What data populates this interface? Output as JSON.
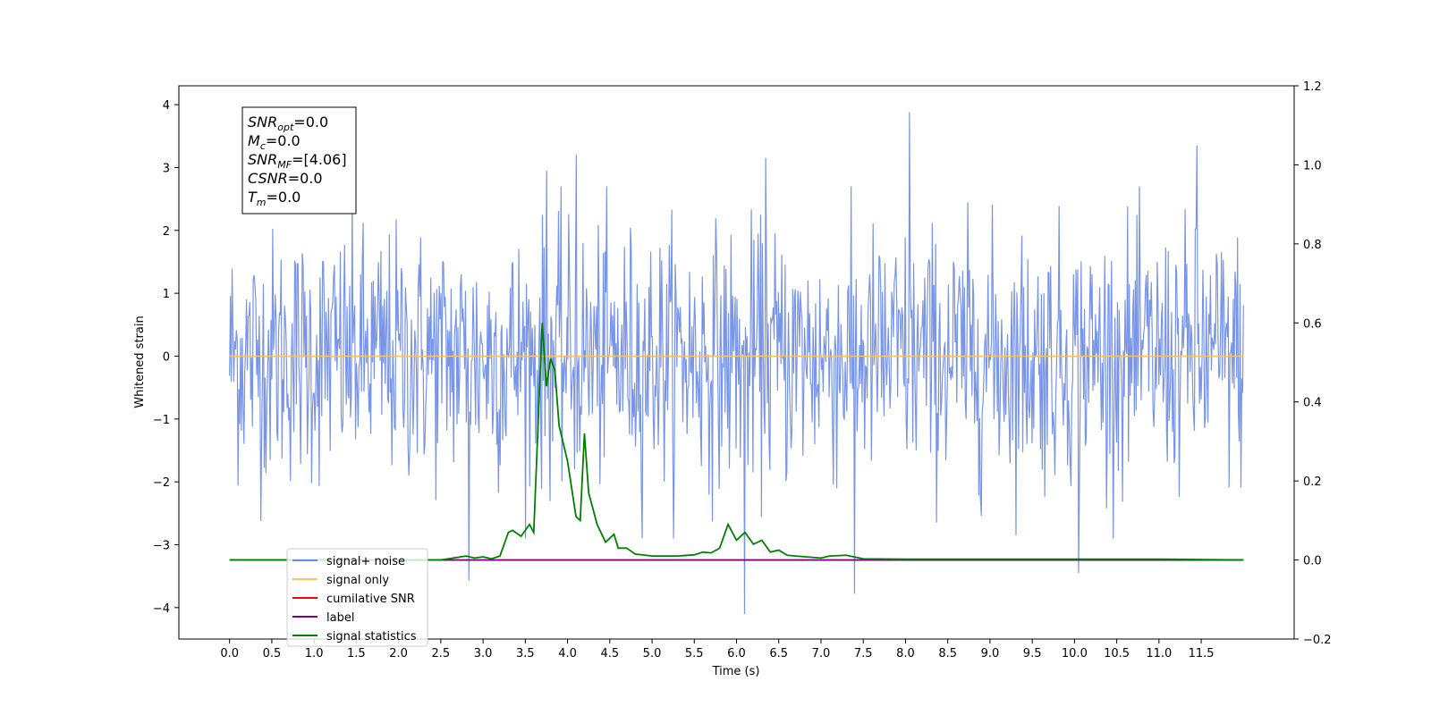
{
  "chart_data": {
    "type": "line",
    "xlabel": "Time (s)",
    "ylabel": "Whitened strain",
    "xlim": [
      -0.6,
      12.6
    ],
    "ylim": [
      -4.5,
      4.3
    ],
    "y2lim": [
      -0.2,
      1.2
    ],
    "x_ticks": [
      0.0,
      0.5,
      1.0,
      1.5,
      2.0,
      2.5,
      3.0,
      3.5,
      4.0,
      4.5,
      5.0,
      5.5,
      6.0,
      6.5,
      7.0,
      7.5,
      8.0,
      8.5,
      9.0,
      9.5,
      10.0,
      10.5,
      11.0,
      11.5
    ],
    "x_tick_labels": [
      "0.0",
      "0.5",
      "1.0",
      "1.5",
      "2.0",
      "2.5",
      "3.0",
      "3.5",
      "4.0",
      "4.5",
      "5.0",
      "5.5",
      "6.0",
      "6.5",
      "7.0",
      "7.5",
      "8.0",
      "8.5",
      "9.0",
      "9.5",
      "10.0",
      "10.5",
      "11.0",
      "11.5"
    ],
    "y_ticks": [
      4,
      3,
      2,
      1,
      0,
      -1,
      -2,
      -3,
      -4
    ],
    "y_tick_labels": [
      "4",
      "3",
      "2",
      "1",
      "0",
      "−1",
      "−2",
      "−3",
      "−4"
    ],
    "y2_ticks": [
      1.2,
      1.0,
      0.8,
      0.6,
      0.4,
      0.2,
      0.0,
      -0.2
    ],
    "y2_tick_labels": [
      "1.2",
      "1.0",
      "0.8",
      "0.6",
      "0.4",
      "0.2",
      "0.0",
      "−0.2"
    ],
    "grid": false,
    "legend_position": "bottom-left",
    "series": [
      {
        "name": "signal+ noise",
        "color": "#6a89e6",
        "axis": "left",
        "description_values": "dense noise, range about -4.1 to 3.9",
        "x_range": [
          0.0,
          12.0
        ],
        "sample_count": 1200,
        "peaks": [
          [
            8.05,
            3.88
          ],
          [
            11.45,
            3.35
          ],
          [
            6.1,
            -4.1
          ],
          [
            7.4,
            -3.78
          ],
          [
            2.83,
            -3.57
          ],
          [
            3.75,
            2.95
          ],
          [
            4.1,
            3.2
          ],
          [
            6.35,
            3.15
          ],
          [
            10.05,
            -3.45
          ]
        ]
      },
      {
        "name": "signal only",
        "color": "#ffbf5a",
        "axis": "left",
        "x": [
          0.0,
          12.0
        ],
        "values": [
          0.0,
          0.0
        ]
      },
      {
        "name": "cumilative SNR",
        "color": "#ff0000",
        "axis": "right",
        "x": [],
        "values": []
      },
      {
        "name": "label",
        "color": "#800080",
        "axis": "right",
        "x": [
          0.0,
          12.0
        ],
        "values": [
          0.0,
          0.0
        ]
      },
      {
        "name": "signal statistics",
        "color": "#008000",
        "axis": "right",
        "x": [
          0.0,
          2.5,
          2.8,
          2.9,
          3.0,
          3.1,
          3.2,
          3.3,
          3.35,
          3.45,
          3.55,
          3.6,
          3.7,
          3.75,
          3.8,
          3.85,
          3.9,
          4.0,
          4.1,
          4.15,
          4.2,
          4.25,
          4.35,
          4.45,
          4.55,
          4.6,
          4.7,
          4.8,
          5.0,
          5.3,
          5.5,
          5.6,
          5.7,
          5.8,
          5.9,
          6.0,
          6.1,
          6.2,
          6.3,
          6.4,
          6.5,
          6.6,
          6.7,
          7.0,
          7.1,
          7.3,
          7.5,
          8.0,
          9.0,
          10.0,
          11.0,
          12.0
        ],
        "values": [
          0.0,
          0.0,
          0.01,
          0.005,
          0.008,
          0.003,
          0.01,
          0.07,
          0.075,
          0.06,
          0.09,
          0.07,
          0.6,
          0.44,
          0.51,
          0.48,
          0.34,
          0.25,
          0.11,
          0.1,
          0.32,
          0.17,
          0.09,
          0.045,
          0.065,
          0.03,
          0.03,
          0.015,
          0.01,
          0.01,
          0.013,
          0.02,
          0.018,
          0.03,
          0.09,
          0.05,
          0.07,
          0.04,
          0.05,
          0.02,
          0.025,
          0.012,
          0.01,
          0.005,
          0.01,
          0.012,
          0.003,
          0.002,
          0.002,
          0.002,
          0.002,
          0.0
        ]
      }
    ]
  },
  "info_box": {
    "lines": [
      {
        "var": "SNR",
        "sub": "opt",
        "value": "=0.0"
      },
      {
        "var": "M",
        "sub": "c",
        "value": "=0.0"
      },
      {
        "var": "SNR",
        "sub": "MF",
        "value": "=[4.06]"
      },
      {
        "var": "CSNR",
        "sub": "",
        "value": "=0.0"
      },
      {
        "var": "T",
        "sub": "m",
        "value": "=0.0"
      }
    ]
  }
}
